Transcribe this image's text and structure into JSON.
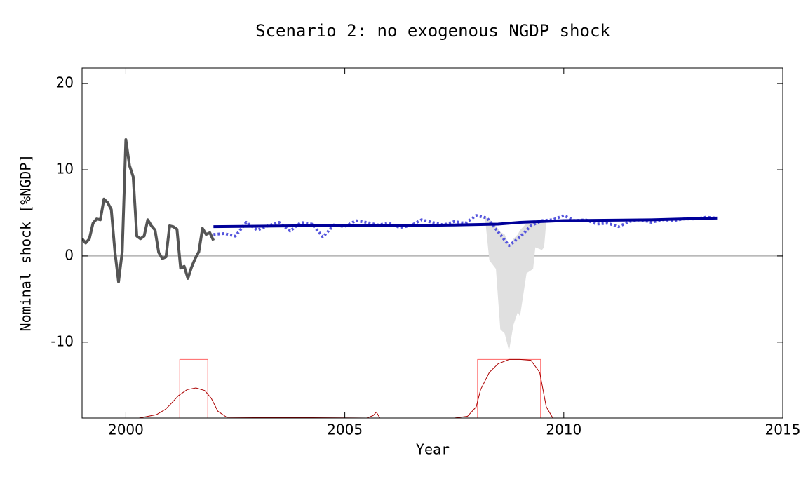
{
  "chart_data": {
    "type": "line",
    "title": "Scenario 2: no exogenous NGDP shock",
    "xlabel": "Year",
    "ylabel": "Nominal shock [%NGDP]",
    "xlim": [
      1999,
      2015
    ],
    "ylim": [
      -18.8,
      21.8
    ],
    "xticks": [
      2000,
      2005,
      2010,
      2015
    ],
    "yticks": [
      -10,
      0,
      10,
      20
    ],
    "hline": 0,
    "series": [
      {
        "color": "#e0e0e0",
        "x": [
          2008.2,
          2008.3,
          2008.45,
          2008.55,
          2008.65,
          2008.75,
          2008.85,
          2008.95,
          2009.0,
          2009.15,
          2009.3,
          2009.35,
          2009.5,
          2009.55,
          2009.6
        ],
        "low": [
          4.5,
          -0.5,
          -1.5,
          -8.5,
          -9,
          -11,
          -8,
          -6.5,
          -7,
          -2,
          -1.5,
          1,
          0.7,
          1,
          4
        ],
        "high": [
          4.5,
          4.3,
          3.5,
          2.8,
          2.5,
          1.2,
          2,
          2.5,
          3,
          3.8,
          4,
          4.1,
          4.1,
          4.2,
          4.2
        ]
      },
      {
        "color": "#ff6666",
        "width": 1,
        "x": [
          1999,
          2001.23,
          2001.23,
          2001.87,
          2001.87,
          2008.03,
          2008.03,
          2009.47,
          2009.47,
          2015
        ],
        "values": [
          -18.8,
          -18.8,
          -12,
          -12,
          -18.8,
          -18.8,
          -12,
          -12,
          -18.8,
          -18.8
        ]
      },
      {
        "color": "#aa0000",
        "width": 1,
        "x": [
          1999,
          2000.3,
          2000.7,
          2000.9,
          2001.0,
          2001.2,
          2001.4,
          2001.6,
          2001.8,
          2001.95,
          2002.1,
          2002.3,
          2005.5,
          2005.65,
          2005.72,
          2005.8,
          2007.5,
          2007.8,
          2008.0,
          2008.1,
          2008.3,
          2008.5,
          2008.75,
          2009.0,
          2009.25,
          2009.45,
          2009.6,
          2009.75,
          2015
        ],
        "values": [
          -18.8,
          -18.8,
          -18.4,
          -17.8,
          -17.3,
          -16.2,
          -15.5,
          -15.3,
          -15.6,
          -16.5,
          -18,
          -18.7,
          -18.8,
          -18.5,
          -18.1,
          -18.8,
          -18.8,
          -18.6,
          -17.5,
          -15.5,
          -13.5,
          -12.5,
          -12,
          -12,
          -12.1,
          -13.5,
          -17.5,
          -18.8,
          -18.8
        ]
      },
      {
        "color": "#555555",
        "width": 4,
        "x": [
          1999.0,
          1999.083,
          1999.167,
          1999.25,
          1999.333,
          1999.417,
          1999.5,
          1999.583,
          1999.667,
          1999.75,
          1999.833,
          1999.917,
          2000.0,
          2000.083,
          2000.167,
          2000.25,
          2000.333,
          2000.417,
          2000.5,
          2000.583,
          2000.667,
          2000.75,
          2000.833,
          2000.917,
          2001.0,
          2001.083,
          2001.167,
          2001.25,
          2001.333,
          2001.417,
          2001.5,
          2001.583,
          2001.667,
          2001.75,
          2001.833,
          2001.917,
          2002.0
        ],
        "values": [
          2,
          1.5,
          2,
          3.8,
          4.3,
          4.2,
          6.6,
          6.2,
          5.4,
          0.5,
          -3,
          0.5,
          13.5,
          10.5,
          9.2,
          2.3,
          2,
          2.3,
          4.2,
          3.5,
          3,
          0.4,
          -0.3,
          -0.1,
          3.5,
          3.4,
          3.1,
          -1.4,
          -1.2,
          -2.6,
          -1.3,
          -0.3,
          0.5,
          3.2,
          2.5,
          2.7,
          1.8
        ]
      },
      {
        "color": "#5555dd",
        "width": 4,
        "dash": "3 3",
        "x": [
          2002.0,
          2002.25,
          2002.5,
          2002.75,
          2003.0,
          2003.25,
          2003.5,
          2003.75,
          2004.0,
          2004.25,
          2004.5,
          2004.75,
          2005.0,
          2005.25,
          2005.5,
          2005.75,
          2006.0,
          2006.25,
          2006.5,
          2006.75,
          2007.0,
          2007.25,
          2007.5,
          2007.75,
          2008.0,
          2008.25,
          2008.5,
          2008.75,
          2009.0,
          2009.25,
          2009.5,
          2009.75,
          2010.0,
          2010.25,
          2010.5,
          2010.75,
          2011.0,
          2011.25,
          2011.5,
          2011.75,
          2012.0,
          2012.25,
          2012.5,
          2012.75,
          2013.0,
          2013.25,
          2013.5
        ],
        "values": [
          2.5,
          2.6,
          2.3,
          3.9,
          3,
          3.5,
          3.9,
          2.9,
          3.9,
          3.7,
          2.2,
          3.6,
          3.4,
          4.1,
          3.9,
          3.6,
          3.8,
          3.3,
          3.5,
          4.2,
          3.9,
          3.6,
          4,
          3.8,
          4.7,
          4.4,
          2.8,
          1.2,
          2.2,
          3.5,
          4.1,
          4.2,
          4.7,
          4.1,
          4.2,
          3.7,
          3.8,
          3.4,
          4,
          4.2,
          3.9,
          4.2,
          4.1,
          4.3,
          4.3,
          4.5,
          4.4
        ]
      },
      {
        "color": "#000099",
        "width": 4,
        "x": [
          2002,
          2004,
          2006,
          2007.5,
          2008.5,
          2009,
          2010,
          2012,
          2013.5
        ],
        "values": [
          3.4,
          3.5,
          3.5,
          3.6,
          3.7,
          3.9,
          4.1,
          4.2,
          4.4
        ]
      }
    ]
  }
}
